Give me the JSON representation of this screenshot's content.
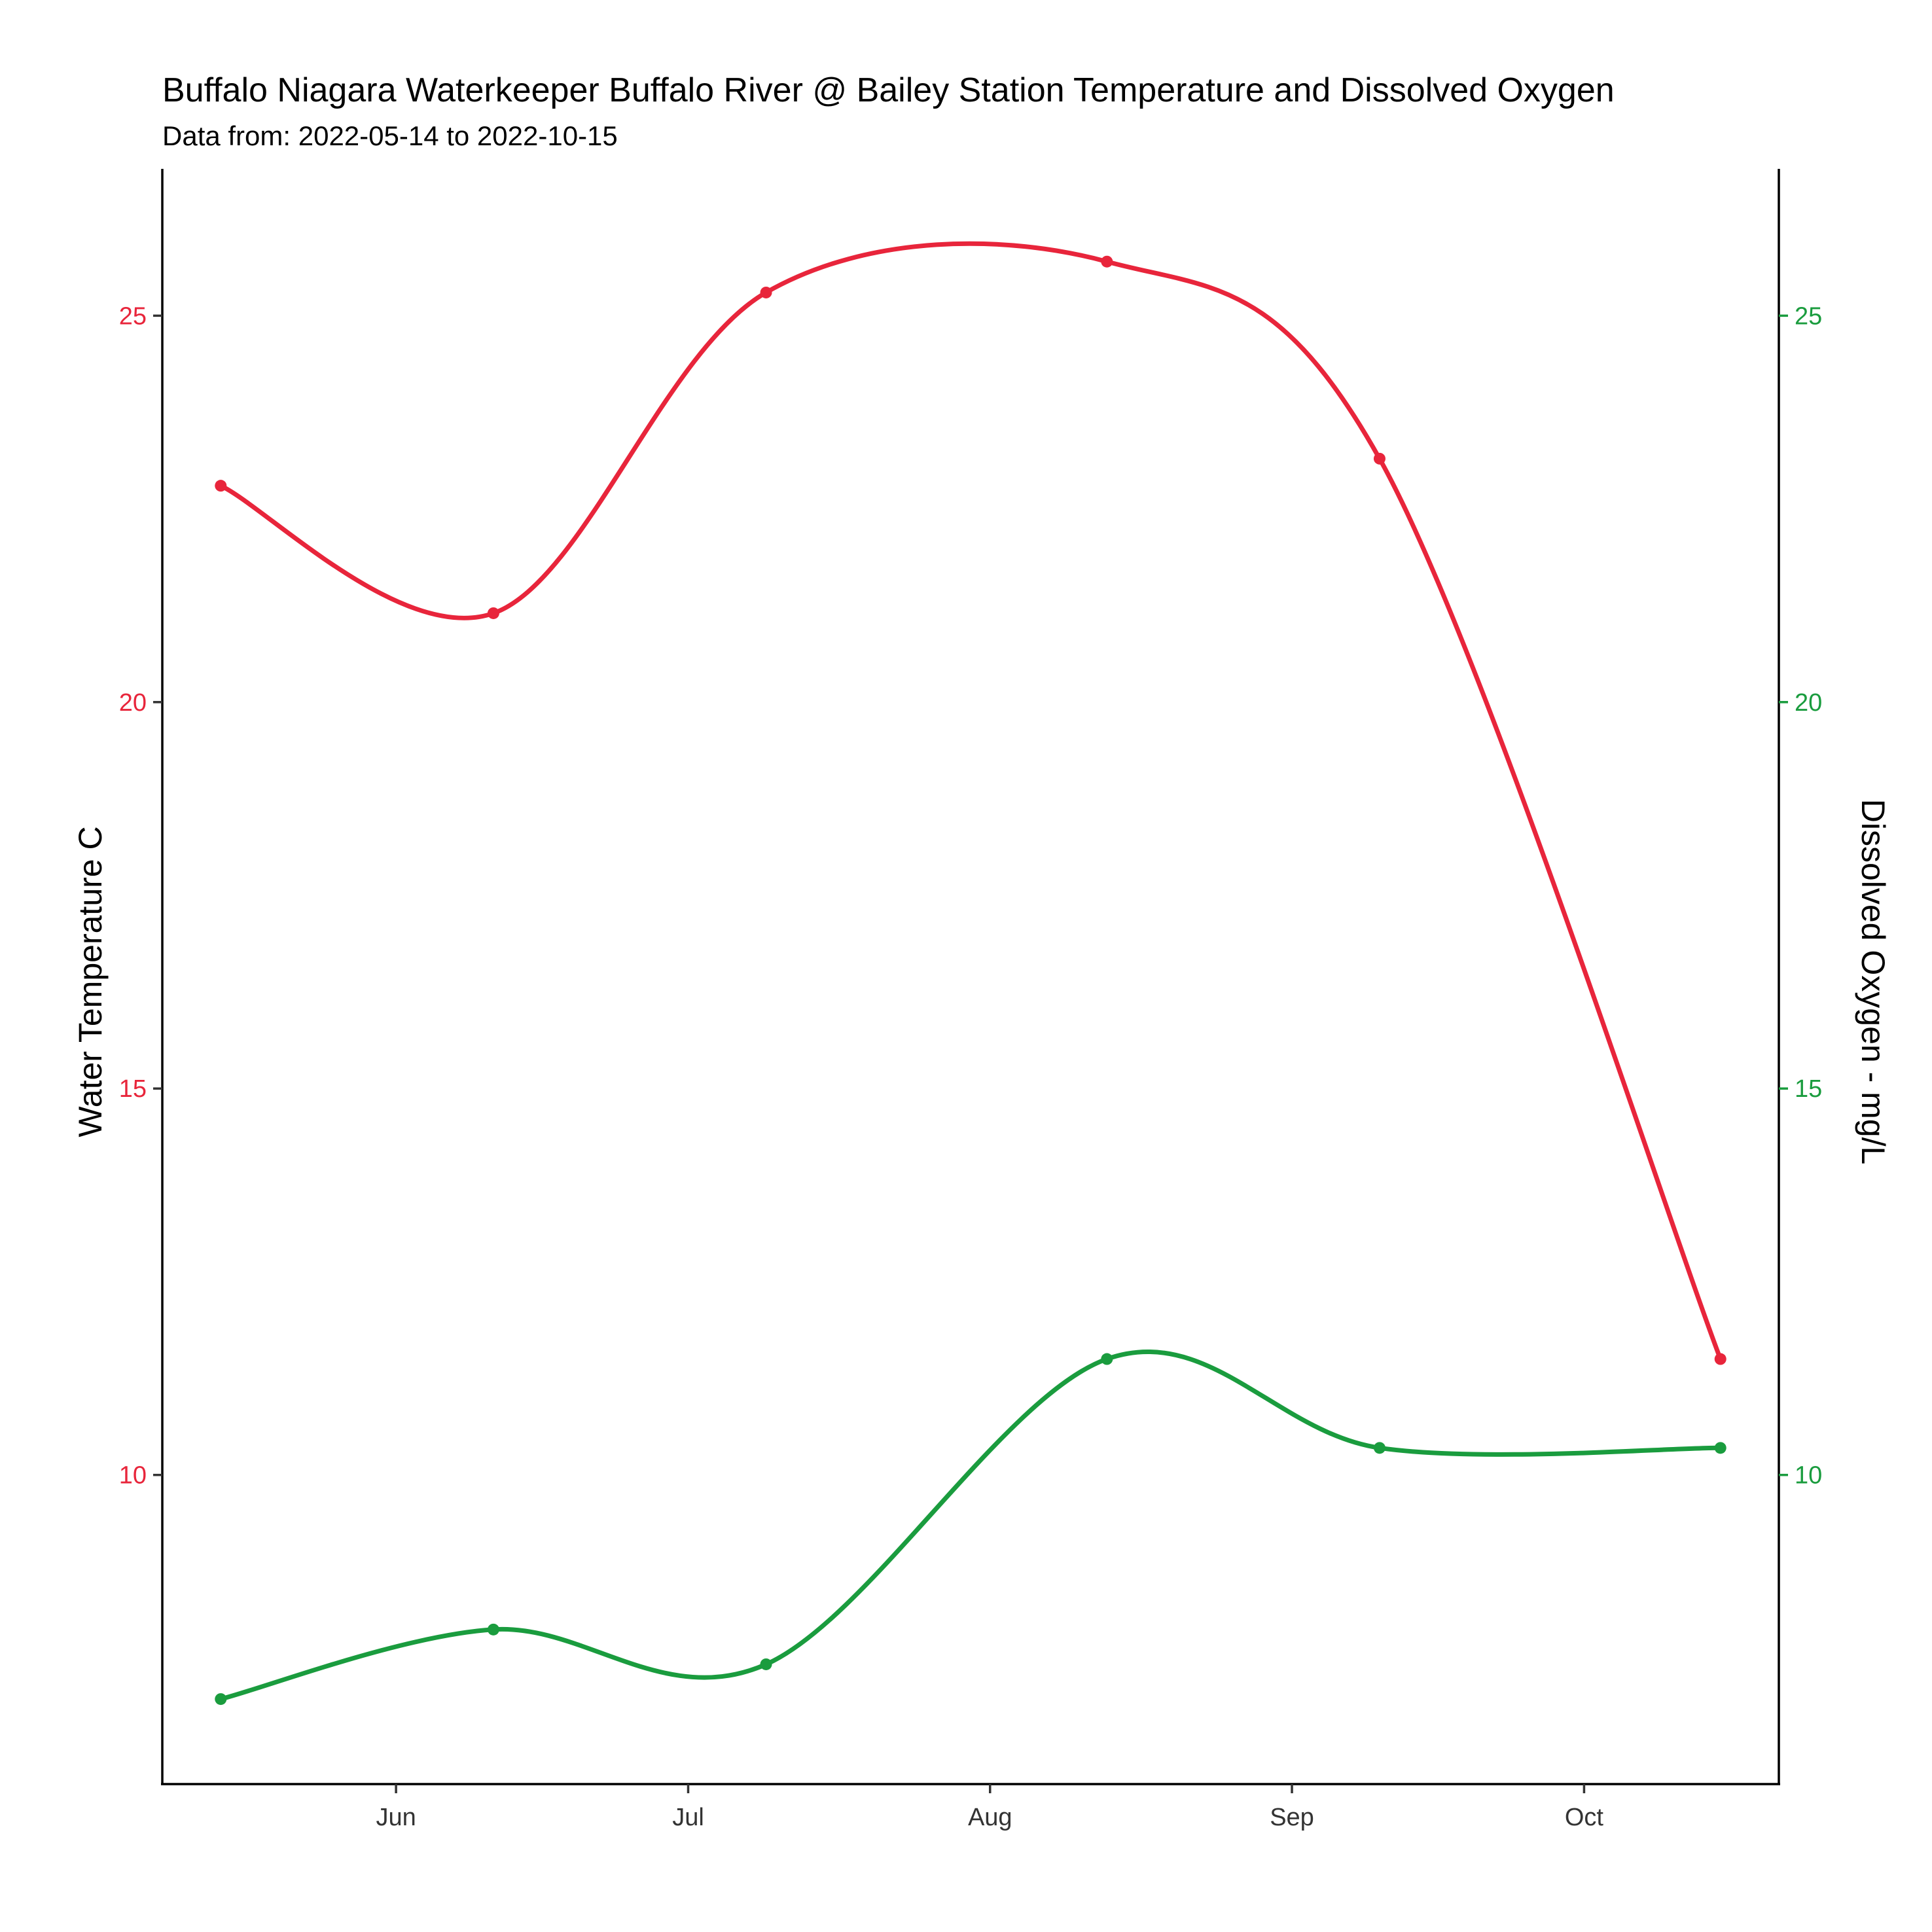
{
  "chart_data": {
    "type": "line",
    "title": "Buffalo Niagara Waterkeeper Buffalo River @ Bailey Station Temperature and Dissolved Oxygen",
    "subtitle": "Data from: 2022-05-14 to 2022-10-15",
    "y_left_label": "Water Temperature C",
    "y_right_label": "Dissolved Oxygen - mg/L",
    "x_ticks": [
      {
        "label": "Jun",
        "date": "2022-06-01"
      },
      {
        "label": "Jul",
        "date": "2022-07-01"
      },
      {
        "label": "Aug",
        "date": "2022-08-01"
      },
      {
        "label": "Sep",
        "date": "2022-09-01"
      },
      {
        "label": "Oct",
        "date": "2022-10-01"
      }
    ],
    "x_range": [
      "2022-05-08",
      "2022-10-21"
    ],
    "y_left_ticks": [
      "10",
      "15",
      "20",
      "25"
    ],
    "y_right_ticks": [
      "10",
      "15",
      "20",
      "25"
    ],
    "ylim": [
      6.0,
      26.9
    ],
    "grid": false,
    "legend": "none",
    "series": [
      {
        "axis": "left",
        "color": "#e8253b",
        "x": [
          "2022-05-14",
          "2022-06-11",
          "2022-07-09",
          "2022-08-13",
          "2022-09-10",
          "2022-10-15"
        ],
        "y": [
          22.8,
          21.15,
          25.3,
          25.7,
          23.15,
          11.5
        ]
      },
      {
        "axis": "right",
        "color": "#1a9c3e",
        "x": [
          "2022-05-14",
          "2022-06-11",
          "2022-07-09",
          "2022-08-13",
          "2022-09-10",
          "2022-10-15"
        ],
        "y": [
          7.1,
          8.0,
          7.55,
          11.5,
          10.35,
          10.35
        ]
      }
    ]
  }
}
